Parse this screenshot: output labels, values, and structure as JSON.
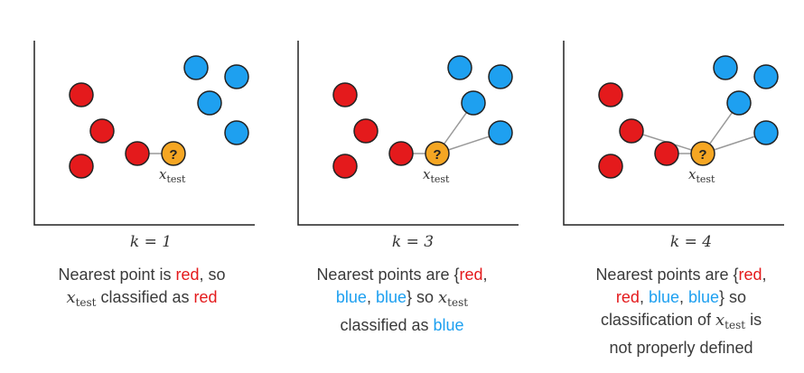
{
  "colors": {
    "red": "#e41a1c",
    "blue": "#1ea0f0",
    "query": "#f5a623",
    "axis": "#222222",
    "edge": "#999999"
  },
  "query_symbol": "?",
  "xtest_label": {
    "x": "x",
    "sub": "test"
  },
  "panels": [
    {
      "k_label": "k = 1",
      "desc": [
        {
          "t": "Nearest point is ",
          "c": ""
        },
        {
          "t": "red",
          "c": "red"
        },
        {
          "t": ", so ",
          "c": ""
        },
        {
          "br": true
        },
        {
          "math": true
        },
        {
          "t": " classified as ",
          "c": ""
        },
        {
          "t": "red",
          "c": "red"
        }
      ]
    },
    {
      "k_label": "k = 3",
      "desc": [
        {
          "t": "Nearest points are {",
          "c": ""
        },
        {
          "t": "red",
          "c": "red"
        },
        {
          "t": ",",
          "c": ""
        },
        {
          "br": true
        },
        {
          "t": "blue",
          "c": "blue"
        },
        {
          "t": ", ",
          "c": ""
        },
        {
          "t": "blue",
          "c": "blue"
        },
        {
          "t": "} so ",
          "c": ""
        },
        {
          "math": true
        },
        {
          "br": true
        },
        {
          "t": "classified as ",
          "c": ""
        },
        {
          "t": "blue",
          "c": "blue"
        }
      ]
    },
    {
      "k_label": "k = 4",
      "desc": [
        {
          "t": "Nearest points are {",
          "c": ""
        },
        {
          "t": "red",
          "c": "red"
        },
        {
          "t": ",",
          "c": ""
        },
        {
          "br": true
        },
        {
          "t": "red",
          "c": "red"
        },
        {
          "t": ", ",
          "c": ""
        },
        {
          "t": "blue",
          "c": "blue"
        },
        {
          "t": ", ",
          "c": ""
        },
        {
          "t": "blue",
          "c": "blue"
        },
        {
          "t": "} so",
          "c": ""
        },
        {
          "br": true
        },
        {
          "t": "classification of ",
          "c": ""
        },
        {
          "math": true
        },
        {
          "t": " is",
          "c": ""
        },
        {
          "br": true
        },
        {
          "t": "not properly defined",
          "c": ""
        }
      ]
    }
  ]
}
